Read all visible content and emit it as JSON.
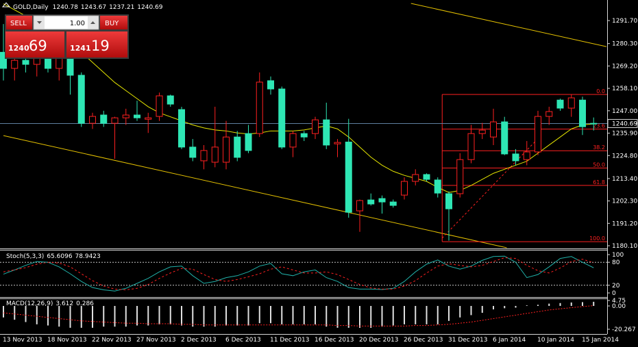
{
  "trade_panel": {
    "sell": "SELL",
    "lots": "1.00",
    "buy": "BUY",
    "bid_major": "1240",
    "bid_minor": "69",
    "ask_major": "1241",
    "ask_minor": "19"
  },
  "chart_data": [
    {
      "type": "candlestick",
      "title": "GOLD,Daily",
      "categories": [
        "13 Nov 2013",
        null,
        null,
        null,
        "18 Nov 2013",
        null,
        null,
        null,
        "22 Nov 2013",
        null,
        null,
        null,
        "27 Nov 2013",
        null,
        null,
        null,
        "2 Dec 2013",
        null,
        null,
        null,
        "6 Dec 2013",
        null,
        null,
        null,
        "11 Dec 2013",
        null,
        null,
        null,
        "16 Dec 2013",
        null,
        null,
        null,
        "20 Dec 2013",
        null,
        null,
        null,
        "26 Dec 2013",
        null,
        null,
        null,
        "31 Dec 2013",
        null,
        null,
        null,
        "6 Jan 2014",
        null,
        null,
        null,
        "10 Jan 2014",
        null,
        null,
        null,
        "15 Jan 2014",
        null
      ],
      "open": [
        1276,
        1268,
        1272,
        1270,
        1274,
        1268,
        1273,
        1264.6,
        1240.8,
        1244.9,
        1240.8,
        1243.5,
        1244.9,
        1242.8,
        1244.2,
        1254.4,
        1247.6,
        1229,
        1222.2,
        1221.5,
        1221.5,
        1234,
        1235.7,
        1235.7,
        1261.9,
        1257.8,
        1229,
        1235.7,
        1235.7,
        1242.5,
        1230.6,
        1231.5,
        1197.4,
        1202.8,
        1203.5,
        1201.8,
        1205.2,
        1212,
        1215.4,
        1212.7,
        1205.9,
        1205.9,
        1222.8,
        1235.7,
        1234,
        1241.5,
        1225.6,
        1222.8,
        1226.6,
        1244.2,
        1252.3,
        1248.3,
        1252.3,
        1240.78
      ],
      "high": [
        1290,
        1276,
        1280,
        1278,
        1282,
        1275,
        1276,
        1266,
        1246,
        1247,
        1244,
        1248,
        1252,
        1246,
        1256,
        1255,
        1249,
        1233,
        1230,
        1249,
        1242,
        1237,
        1240,
        1266,
        1264,
        1259,
        1237,
        1237,
        1244,
        1251,
        1233,
        1243,
        1203,
        1206,
        1205,
        1203,
        1214,
        1218,
        1216,
        1214,
        1207,
        1226,
        1240,
        1241,
        1248,
        1244,
        1228,
        1232,
        1247,
        1249,
        1253,
        1255,
        1254,
        1243.67
      ],
      "low": [
        1262,
        1262,
        1266,
        1264,
        1266,
        1262,
        1255,
        1239,
        1238,
        1239,
        1223.2,
        1240,
        1242,
        1236,
        1242,
        1249,
        1228,
        1222,
        1218,
        1219,
        1218,
        1222,
        1226,
        1234,
        1255,
        1228,
        1224,
        1232,
        1233,
        1228,
        1224,
        1194,
        1187,
        1200,
        1196,
        1199,
        1203,
        1210,
        1212,
        1204,
        1182.6,
        1204,
        1221,
        1233,
        1230,
        1225,
        1220,
        1220,
        1225,
        1240,
        1247,
        1244,
        1235,
        1237.21
      ],
      "close": [
        1268,
        1272,
        1270,
        1274,
        1268,
        1273,
        1264.6,
        1240.8,
        1244.2,
        1240.8,
        1243.5,
        1244.9,
        1243.5,
        1243.5,
        1254.4,
        1250.3,
        1229,
        1223.9,
        1227.3,
        1229,
        1234,
        1223.9,
        1227.3,
        1261.2,
        1257.8,
        1229,
        1235.7,
        1234,
        1242.5,
        1230,
        1231.3,
        1196.7,
        1202.5,
        1200.8,
        1201.8,
        1200.1,
        1212,
        1215.4,
        1213,
        1206.2,
        1198.4,
        1222.8,
        1235.7,
        1237.4,
        1241.5,
        1225.6,
        1222.2,
        1226.6,
        1244.2,
        1246.6,
        1248.3,
        1253.4,
        1239.1,
        1240.69
      ],
      "up_color": "#ff2020",
      "down_color": "#2ee6b4",
      "ylim": [
        1179.1,
        1301.9
      ],
      "yticks": [
        {
          "value": 1180.1,
          "label": "1180.10"
        },
        {
          "value": 1191.2,
          "label": "1191.20"
        },
        {
          "value": 1202.3,
          "label": "1202.30"
        },
        {
          "value": 1213.4,
          "label": "1213.40"
        },
        {
          "value": 1224.8,
          "label": "1224.80"
        },
        {
          "value": 1235.9,
          "label": "1235.90"
        },
        {
          "value": 1247,
          "label": "1247.00"
        },
        {
          "value": 1258.1,
          "label": "1258.10"
        },
        {
          "value": 1269.2,
          "label": "1269.20"
        },
        {
          "value": 1280.3,
          "label": "1280.30"
        },
        {
          "value": 1291.7,
          "label": "1291.70"
        }
      ],
      "moving_average": {
        "color": "#e6e600",
        "values": [
          1300,
          1297,
          1294,
          1290,
          1287,
          1284,
          1281,
          1276,
          1271,
          1266,
          1261,
          1257,
          1253,
          1249,
          1246,
          1244,
          1242,
          1240,
          1238.5,
          1237.5,
          1237,
          1236,
          1235.5,
          1236,
          1237,
          1237,
          1237,
          1237.5,
          1238.5,
          1239.5,
          1238,
          1234,
          1229,
          1224,
          1220,
          1217,
          1215,
          1213.5,
          1212,
          1209,
          1206.5,
          1207.5,
          1210,
          1213,
          1216,
          1218,
          1220,
          1222,
          1226,
          1230,
          1234,
          1238,
          1240,
          1240.5
        ]
      },
      "trendlines": [
        {
          "color": "#e6c200",
          "points": [
            [
              36.6,
              1300.2
            ],
            [
              54.15,
              1278.8
            ]
          ]
        },
        {
          "color": "#e6c200",
          "points": [
            [
              0,
              1234.7
            ],
            [
              45.2,
              1179.1
            ]
          ]
        },
        {
          "color": "#ff2020",
          "dashed": true,
          "points": [
            [
              39.4,
              1183.9
            ],
            [
              48,
              1233.2
            ]
          ]
        }
      ],
      "fibonacci": {
        "color": "#ff2020",
        "start": 39.4,
        "levels": [
          {
            "level": {
              "value": 0,
              "label": "0.0"
            },
            "price": 1255.1
          },
          {
            "level": 23.6,
            "price": 1237.9
          },
          {
            "level": 38.2,
            "price": 1227.2
          },
          {
            "level": {
              "value": 50,
              "label": "50.0"
            },
            "price": 1218.6
          },
          {
            "level": 61.8,
            "price": 1210.0
          },
          {
            "level": {
              "value": 100,
              "label": "100.0"
            },
            "price": 1182.1
          }
        ]
      },
      "last_price_color": "#5f7f9f"
    },
    {
      "type": "line",
      "title": "Stoch(5,3,3)",
      "series": [
        {
          "color": "#20b2aa",
          "values": [
            49,
            60,
            72,
            82,
            80,
            68,
            50,
            30,
            14,
            8,
            5,
            12,
            25,
            38,
            55,
            68,
            70,
            45,
            25,
            30,
            40,
            45,
            55,
            70,
            77,
            50,
            45,
            55,
            60,
            40,
            30,
            14,
            10,
            10,
            9,
            12,
            30,
            55,
            75,
            86,
            70,
            62,
            70,
            85,
            95,
            96,
            80,
            40,
            48,
            68,
            90,
            95,
            80,
            65.6096
          ]
        },
        {
          "color": "#ff2020",
          "dashed": true,
          "values": [
            55,
            60,
            66,
            75,
            80,
            78,
            68,
            50,
            32,
            18,
            10,
            8,
            12,
            22,
            38,
            52,
            64,
            62,
            48,
            35,
            30,
            35,
            42,
            50,
            62,
            68,
            60,
            52,
            52,
            55,
            48,
            35,
            22,
            13,
            10,
            10,
            18,
            32,
            52,
            70,
            76,
            72,
            68,
            72,
            82,
            92,
            90,
            72,
            58,
            52,
            65,
            82,
            88,
            78.9423
          ]
        }
      ],
      "levels": [
        20,
        80
      ],
      "ylim": [
        -8.9,
        110.7
      ],
      "yticks": [
        0,
        20,
        80,
        100
      ]
    },
    {
      "type": "macd",
      "title": "MACD(12,26,9)",
      "series": [
        {
          "color": "#e0e0e0",
          "kind": "histogram",
          "values": [
            -10,
            -12,
            -14,
            -16,
            -17,
            -18,
            -19,
            -19,
            -19,
            -18,
            -18,
            -18,
            -17,
            -17,
            -16,
            -16,
            -17,
            -18,
            -18,
            -18,
            -17,
            -17,
            -17,
            -15,
            -15,
            -16,
            -16,
            -16,
            -16,
            -18,
            -19,
            -19,
            -19,
            -19,
            -18,
            -17,
            -16,
            -16,
            -16,
            -16,
            -13,
            -10,
            -8,
            -6,
            -3,
            -2,
            -1.5,
            0.5,
            1,
            2,
            2.5,
            3,
            3.3,
            3.612
          ]
        },
        {
          "color": "#ff2020",
          "dashed": true,
          "values": [
            -6,
            -7,
            -8,
            -9,
            -10,
            -11,
            -12,
            -13,
            -13.5,
            -14,
            -14.5,
            -15,
            -15,
            -15.5,
            -15.5,
            -15.5,
            -16,
            -16,
            -16.5,
            -16.5,
            -16.5,
            -16.5,
            -16.5,
            -16.5,
            -16.5,
            -16.5,
            -16.5,
            -16.5,
            -16.5,
            -16.5,
            -17,
            -17,
            -17.5,
            -17.5,
            -17.5,
            -17.5,
            -17.5,
            -17,
            -17,
            -16.5,
            -16,
            -15,
            -14,
            -12.5,
            -11,
            -9.5,
            -8,
            -6.5,
            -5,
            -3.5,
            -2.5,
            -1.5,
            -0.6,
            0.286
          ]
        }
      ],
      "ylim": [
        -24.4,
        5.95
      ],
      "yticks": [
        -20.267,
        {
          "value": 0,
          "label": "0.00"
        },
        4.75
      ]
    }
  ]
}
